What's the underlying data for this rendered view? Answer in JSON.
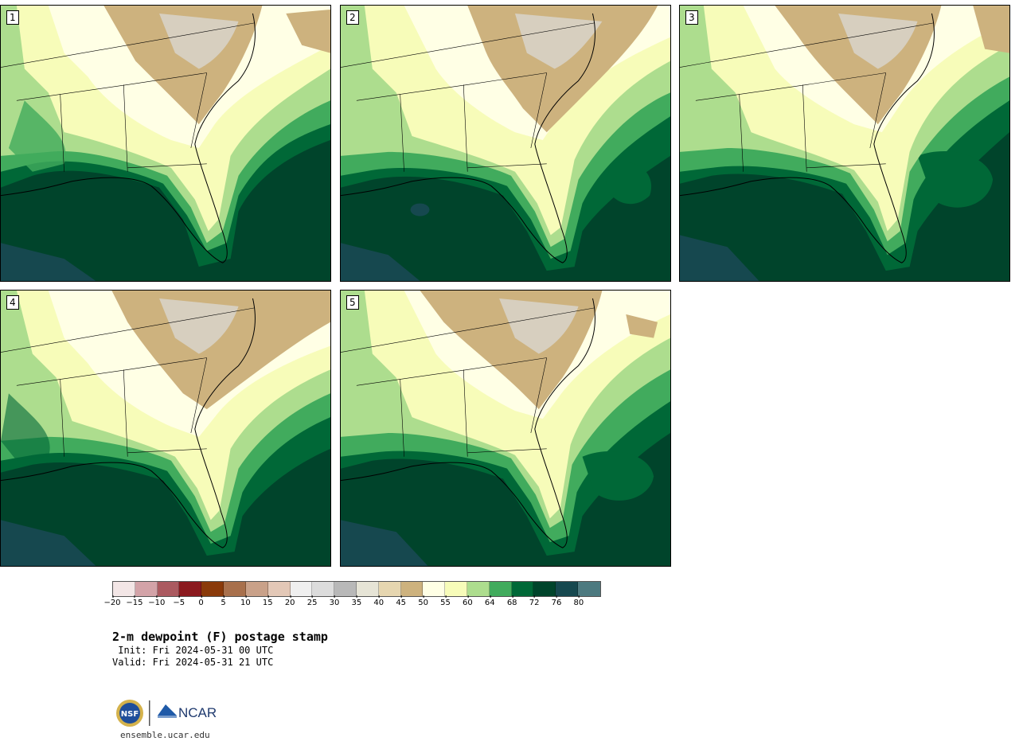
{
  "panels": [
    {
      "label": "1"
    },
    {
      "label": "2"
    },
    {
      "label": "3"
    },
    {
      "label": "4"
    },
    {
      "label": "5"
    }
  ],
  "colorbar": {
    "tick_labels": [
      "−20",
      "−15",
      "−10",
      "−5",
      "0",
      "5",
      "10",
      "15",
      "20",
      "25",
      "30",
      "35",
      "40",
      "45",
      "50",
      "55",
      "60",
      "64",
      "68",
      "72",
      "76",
      "80"
    ],
    "colors": [
      "#f3e6e6",
      "#d3a3a8",
      "#ab5a60",
      "#8b1a1f",
      "#8a3a0a",
      "#a8704c",
      "#c9a189",
      "#e3c8b7",
      "#efefef",
      "#dcdcdc",
      "#b8b8b8",
      "#e6e4d6",
      "#e6d6b0",
      "#cdb27e",
      "#ffffe5",
      "#f7fcb9",
      "#addd8e",
      "#41ab5d",
      "#006837",
      "#00442b",
      "#16484f",
      "#4d7a80"
    ]
  },
  "text": {
    "title": "2-m dewpoint (F) postage stamp",
    "init": " Init: Fri 2024-05-31 00 UTC",
    "valid": "Valid: Fri 2024-05-31 21 UTC",
    "url": "ensemble.ucar.edu",
    "logo_nsf": "NSF",
    "logo_ncar": "NCAR"
  },
  "map_colors": {
    "dry": "#cdb27e",
    "very_dry": "#dcdcdc",
    "moist_pale": "#ffffe5",
    "moist_light": "#f7fcb9",
    "green_light": "#addd8e",
    "green_mid": "#41ab5d",
    "green_dark": "#006837",
    "green_deep": "#00442b",
    "teal": "#16484f"
  }
}
